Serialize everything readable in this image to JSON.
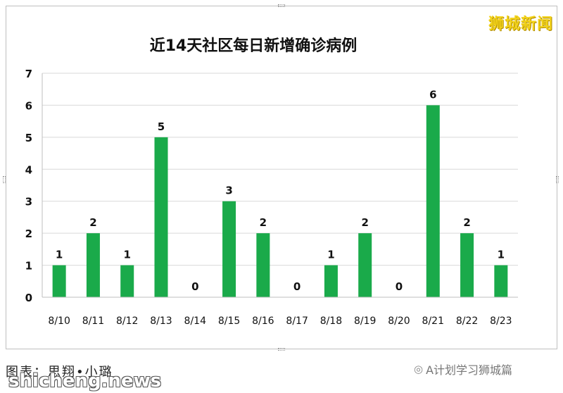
{
  "watermark_top": "狮城新闻",
  "credit": "图表：思翔•小璐",
  "wechat_account": "A计划学习狮城篇",
  "site_watermark": "shicheng.news",
  "chart_data": {
    "type": "bar",
    "title": "近14天社区每日新增确诊病例",
    "categories": [
      "8/10",
      "8/11",
      "8/12",
      "8/13",
      "8/14",
      "8/15",
      "8/16",
      "8/17",
      "8/18",
      "8/19",
      "8/20",
      "8/21",
      "8/22",
      "8/23"
    ],
    "values": [
      1,
      2,
      1,
      5,
      0,
      3,
      2,
      0,
      1,
      2,
      0,
      6,
      2,
      1
    ],
    "ylim": [
      0,
      7
    ],
    "yticks": [
      0,
      1,
      2,
      3,
      4,
      5,
      6,
      7
    ],
    "grid": true,
    "bar_color": "#1aaa4a",
    "data_labels": true
  }
}
